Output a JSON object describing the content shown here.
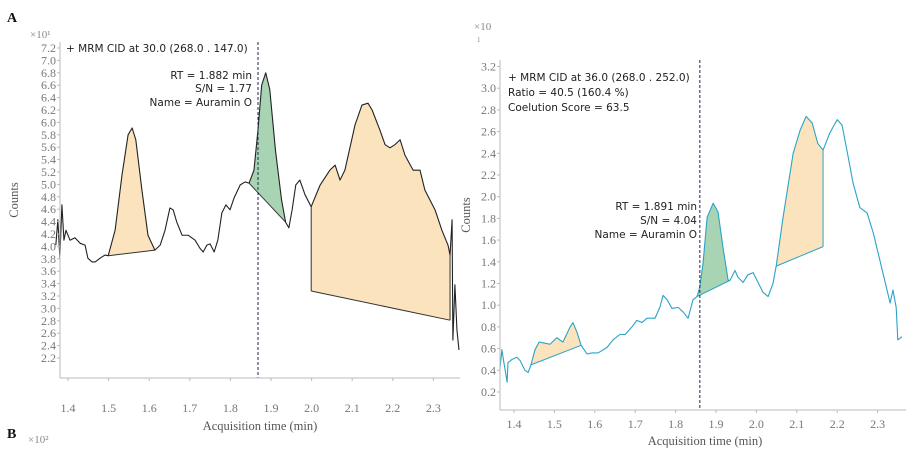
{
  "panel_labels": {
    "a": "A",
    "b": "B",
    "b_multiplier": "×10²"
  },
  "colors": {
    "peak_fill": "#fbe3bd",
    "target_fill": "#a9d4b4",
    "trace_a": "#222222",
    "trace_b": "#2aa3c6",
    "dashed": "#1b2a55"
  },
  "chart_data": [
    {
      "type": "line",
      "title": "+ MRM CID at 30.0 (268.0 . 147.0)",
      "multiplier": "×10¹",
      "xlabel": "Acquisition time (min)",
      "ylabel": "Counts",
      "xlim": [
        1.38,
        2.365
      ],
      "ylim": [
        1.88,
        7.3
      ],
      "xticks": [
        "1.4",
        "1.5",
        "1.6",
        "1.7",
        "1.8",
        "1.9",
        "2.0",
        "2.1",
        "2.2",
        "2.3"
      ],
      "yticks": [
        "7.2",
        "7.0",
        "6.8",
        "6.6",
        "6.4",
        "6.2",
        "6.0",
        "5.8",
        "5.6",
        "5.4",
        "5.2",
        "5.0",
        "4.8",
        "4.6",
        "4.4",
        "4.2",
        "4.0",
        "3.8",
        "3.6",
        "3.4",
        "3.2",
        "3.0",
        "2.8",
        "2.6",
        "2.4",
        "2.2"
      ],
      "annotation": [
        "RT = 1.882 min",
        "S/N = 1.77",
        "Name = Auramin O"
      ],
      "rt_marker": 1.868,
      "x": [
        1.37,
        1.375,
        1.38,
        1.385,
        1.39,
        1.395,
        1.405,
        1.417,
        1.43,
        1.442,
        1.449,
        1.459,
        1.467,
        1.479,
        1.491,
        1.499,
        1.516,
        1.533,
        1.548,
        1.558,
        1.567,
        1.582,
        1.597,
        1.614,
        1.627,
        1.639,
        1.651,
        1.659,
        1.668,
        1.681,
        1.696,
        1.713,
        1.725,
        1.733,
        1.742,
        1.75,
        1.76,
        1.769,
        1.779,
        1.789,
        1.799,
        1.809,
        1.824,
        1.836,
        1.846,
        1.858,
        1.868,
        1.877,
        1.887,
        1.897,
        1.911,
        1.926,
        1.936,
        1.944,
        1.952,
        1.961,
        1.971,
        1.984,
        1.999,
        2.021,
        2.045,
        2.058,
        2.07,
        2.082,
        2.107,
        2.124,
        2.139,
        2.149,
        2.168,
        2.181,
        2.193,
        2.205,
        2.218,
        2.23,
        2.25,
        2.267,
        2.279,
        2.304,
        2.321,
        2.336,
        2.341,
        2.346,
        2.348,
        2.353,
        2.358,
        2.363
      ],
      "y": [
        4.02,
        4.43,
        3.81,
        4.67,
        4.1,
        4.26,
        4.1,
        4.14,
        4.05,
        4.02,
        3.81,
        3.75,
        3.75,
        3.81,
        3.86,
        3.85,
        4.26,
        5.15,
        5.8,
        5.91,
        5.72,
        4.91,
        4.18,
        3.94,
        4.02,
        4.26,
        4.62,
        4.59,
        4.39,
        4.18,
        4.18,
        4.1,
        3.97,
        3.91,
        4.02,
        4.04,
        3.91,
        4.1,
        4.54,
        4.67,
        4.59,
        4.78,
        4.99,
        5.04,
        5.02,
        5.23,
        5.88,
        6.6,
        6.8,
        6.53,
        5.55,
        4.75,
        4.39,
        4.3,
        4.59,
        4.99,
        5.07,
        4.83,
        4.64,
        4.99,
        5.23,
        5.31,
        5.07,
        5.23,
        5.96,
        6.28,
        6.31,
        6.2,
        5.88,
        5.64,
        5.59,
        5.64,
        5.72,
        5.47,
        5.23,
        5.23,
        4.91,
        4.59,
        4.26,
        4.02,
        3.86,
        4.43,
        2.49,
        3.38,
        2.65,
        2.33
      ],
      "peaks": [
        {
          "kind": "qualifier",
          "start": 1.499,
          "end": 1.614,
          "baseline": [
            3.85,
            3.94
          ]
        },
        {
          "kind": "target",
          "start": 1.846,
          "end": 1.936,
          "baseline": [
            5.02,
            4.39
          ]
        },
        {
          "kind": "qualifier",
          "start": 1.999,
          "end": 2.341,
          "baseline": [
            3.28,
            2.81
          ]
        }
      ]
    },
    {
      "type": "line",
      "title": "+ MRM CID at 36.0 (268.0 . 252.0)",
      "subtitle": [
        "Ratio = 40.5 (160.4 %)",
        "Coelution Score = 63.5"
      ],
      "multiplier": "×10",
      "multiplier_exp": "1",
      "xlabel": "Acquisition time (min)",
      "ylabel": "Counts",
      "xlim": [
        1.365,
        2.368
      ],
      "ylim": [
        0.03,
        3.22
      ],
      "xticks": [
        "1.4",
        "1.5",
        "1.6",
        "1.7",
        "1.8",
        "1.9",
        "2.0",
        "2.1",
        "2.2",
        "2.3"
      ],
      "yticks": [
        "3.2",
        "3.0",
        "2.8",
        "2.6",
        "2.4",
        "2.2",
        "2.0",
        "1.8",
        "1.6",
        "1.4",
        "1.2",
        "1.0",
        "0.8",
        "0.6",
        "0.4",
        "0.2"
      ],
      "annotation": [
        "RT = 1.891 min",
        "S/N = 4.04",
        "Name = Auramin O"
      ],
      "rt_marker": 1.86,
      "x": [
        1.365,
        1.37,
        1.375,
        1.383,
        1.385,
        1.395,
        1.407,
        1.415,
        1.427,
        1.435,
        1.442,
        1.452,
        1.462,
        1.477,
        1.489,
        1.506,
        1.521,
        1.539,
        1.546,
        1.556,
        1.566,
        1.581,
        1.593,
        1.608,
        1.63,
        1.645,
        1.662,
        1.675,
        1.692,
        1.704,
        1.717,
        1.729,
        1.749,
        1.761,
        1.769,
        1.779,
        1.791,
        1.806,
        1.818,
        1.831,
        1.843,
        1.853,
        1.86,
        1.868,
        1.878,
        1.893,
        1.905,
        1.917,
        1.93,
        1.935,
        1.947,
        1.954,
        1.967,
        1.979,
        1.992,
        2.004,
        2.016,
        2.029,
        2.041,
        2.049,
        2.066,
        2.091,
        2.108,
        2.123,
        2.138,
        2.152,
        2.165,
        2.182,
        2.2,
        2.212,
        2.227,
        2.239,
        2.256,
        2.274,
        2.289,
        2.313,
        2.331,
        2.338,
        2.346,
        2.35,
        2.36
      ],
      "y": [
        0.4,
        0.59,
        0.47,
        0.29,
        0.47,
        0.5,
        0.52,
        0.49,
        0.4,
        0.38,
        0.45,
        0.59,
        0.66,
        0.65,
        0.64,
        0.7,
        0.66,
        0.8,
        0.84,
        0.75,
        0.63,
        0.55,
        0.56,
        0.56,
        0.61,
        0.68,
        0.73,
        0.73,
        0.8,
        0.86,
        0.84,
        0.88,
        0.88,
        0.98,
        1.09,
        1.05,
        0.97,
        0.98,
        0.94,
        0.88,
        1.05,
        1.08,
        1.17,
        1.39,
        1.81,
        1.94,
        1.86,
        1.54,
        1.23,
        1.23,
        1.32,
        1.26,
        1.21,
        1.28,
        1.3,
        1.21,
        1.12,
        1.08,
        1.2,
        1.36,
        1.81,
        2.4,
        2.61,
        2.74,
        2.68,
        2.49,
        2.43,
        2.59,
        2.71,
        2.66,
        2.37,
        2.13,
        1.9,
        1.85,
        1.67,
        1.3,
        1.02,
        1.14,
        0.98,
        0.68,
        0.71
      ],
      "peaks": [
        {
          "kind": "qualifier",
          "start": 1.442,
          "end": 1.566,
          "baseline": [
            0.45,
            0.63
          ]
        },
        {
          "kind": "target",
          "start": 1.853,
          "end": 1.935,
          "baseline": [
            1.08,
            1.23
          ]
        },
        {
          "kind": "qualifier",
          "start": 2.049,
          "end": 2.165,
          "baseline": [
            1.36,
            1.54
          ]
        }
      ]
    }
  ]
}
